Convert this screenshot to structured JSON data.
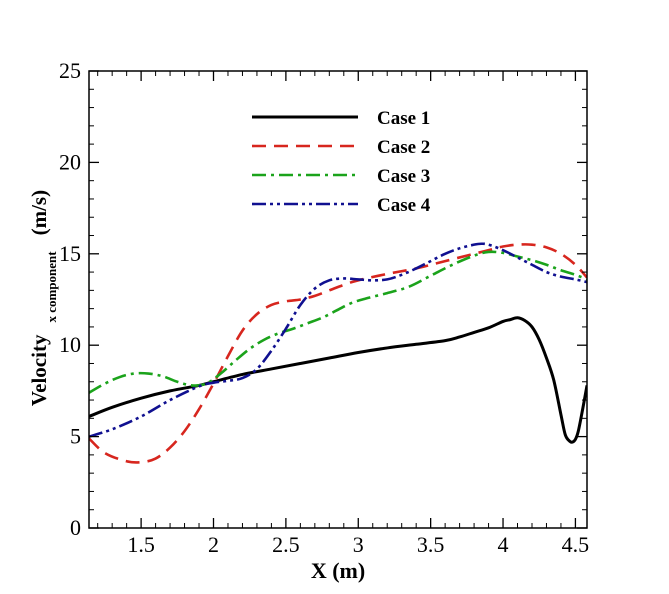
{
  "chart_data": {
    "type": "line",
    "xlabel": "X (m)",
    "ylabel": {
      "main": "Velocity",
      "subscript": "x component",
      "unit": "(m/s)"
    },
    "xlim": [
      1.14,
      4.58
    ],
    "ylim": [
      0,
      25
    ],
    "xticks": [
      1.5,
      2,
      2.5,
      3,
      3.5,
      4,
      4.5
    ],
    "xtick_labels": [
      "1.5",
      "2",
      "2.5",
      "3",
      "3.5",
      "4",
      "4.5"
    ],
    "yticks": [
      0,
      5,
      10,
      15,
      20,
      25
    ],
    "ytick_labels": [
      "0",
      "5",
      "10",
      "15",
      "20",
      "25"
    ],
    "grid": false,
    "legend_position": "top-center",
    "series": [
      {
        "name": "Case 1",
        "color": "#000000",
        "style": "solid",
        "x": [
          1.14,
          1.3,
          1.5,
          1.7,
          1.9,
          2.0,
          2.2,
          2.4,
          2.6,
          2.8,
          3.0,
          3.2,
          3.4,
          3.6,
          3.7,
          3.8,
          3.9,
          4.0,
          4.05,
          4.1,
          4.15,
          4.2,
          4.25,
          4.3,
          4.35,
          4.4,
          4.43,
          4.46,
          4.48,
          4.5,
          4.52,
          4.55,
          4.58
        ],
        "y": [
          6.1,
          6.6,
          7.1,
          7.5,
          7.8,
          8.0,
          8.4,
          8.7,
          9.0,
          9.3,
          9.6,
          9.85,
          10.05,
          10.25,
          10.45,
          10.7,
          10.95,
          11.3,
          11.4,
          11.5,
          11.35,
          11.0,
          10.3,
          9.3,
          8.1,
          6.2,
          5.1,
          4.75,
          4.7,
          4.85,
          5.3,
          6.5,
          7.8
        ]
      },
      {
        "name": "Case 2",
        "color": "#d7261e",
        "style": "dashed",
        "x": [
          1.14,
          1.25,
          1.4,
          1.5,
          1.6,
          1.7,
          1.8,
          1.9,
          2.0,
          2.1,
          2.2,
          2.3,
          2.4,
          2.5,
          2.6,
          2.7,
          2.8,
          2.9,
          3.0,
          3.2,
          3.4,
          3.6,
          3.8,
          3.9,
          4.0,
          4.1,
          4.2,
          4.3,
          4.4,
          4.5,
          4.58
        ],
        "y": [
          4.9,
          4.1,
          3.65,
          3.6,
          3.8,
          4.4,
          5.3,
          6.5,
          7.9,
          9.4,
          10.8,
          11.7,
          12.2,
          12.4,
          12.5,
          12.7,
          13.0,
          13.3,
          13.55,
          13.9,
          14.2,
          14.6,
          15.0,
          15.2,
          15.4,
          15.5,
          15.5,
          15.35,
          15.0,
          14.4,
          13.7
        ]
      },
      {
        "name": "Case 3",
        "color": "#1ba31b",
        "style": "dashdot",
        "x": [
          1.14,
          1.25,
          1.35,
          1.45,
          1.55,
          1.65,
          1.75,
          1.85,
          1.95,
          2.05,
          2.15,
          2.25,
          2.35,
          2.45,
          2.55,
          2.65,
          2.75,
          2.85,
          2.95,
          3.05,
          3.2,
          3.35,
          3.5,
          3.65,
          3.8,
          3.9,
          4.0,
          4.1,
          4.2,
          4.3,
          4.4,
          4.5,
          4.58
        ],
        "y": [
          7.4,
          7.9,
          8.25,
          8.45,
          8.45,
          8.3,
          8.0,
          7.8,
          7.9,
          8.45,
          9.15,
          9.8,
          10.3,
          10.65,
          10.9,
          11.2,
          11.5,
          11.9,
          12.3,
          12.55,
          12.85,
          13.2,
          13.8,
          14.4,
          14.9,
          15.1,
          15.05,
          14.85,
          14.65,
          14.4,
          14.1,
          13.85,
          13.6
        ]
      },
      {
        "name": "Case 4",
        "color": "#101090",
        "style": "dashdotdot",
        "x": [
          1.14,
          1.3,
          1.5,
          1.7,
          1.9,
          2.0,
          2.1,
          2.2,
          2.3,
          2.4,
          2.5,
          2.6,
          2.7,
          2.8,
          2.9,
          3.0,
          3.1,
          3.2,
          3.3,
          3.4,
          3.5,
          3.6,
          3.7,
          3.8,
          3.85,
          3.9,
          4.0,
          4.1,
          4.2,
          4.3,
          4.4,
          4.5,
          4.58
        ],
        "y": [
          5.0,
          5.4,
          6.1,
          7.0,
          7.75,
          7.95,
          8.05,
          8.2,
          8.7,
          9.7,
          10.9,
          12.2,
          13.1,
          13.55,
          13.65,
          13.6,
          13.55,
          13.6,
          13.85,
          14.2,
          14.6,
          15.0,
          15.3,
          15.5,
          15.55,
          15.5,
          15.2,
          14.8,
          14.4,
          14.0,
          13.75,
          13.6,
          13.45
        ]
      }
    ]
  }
}
